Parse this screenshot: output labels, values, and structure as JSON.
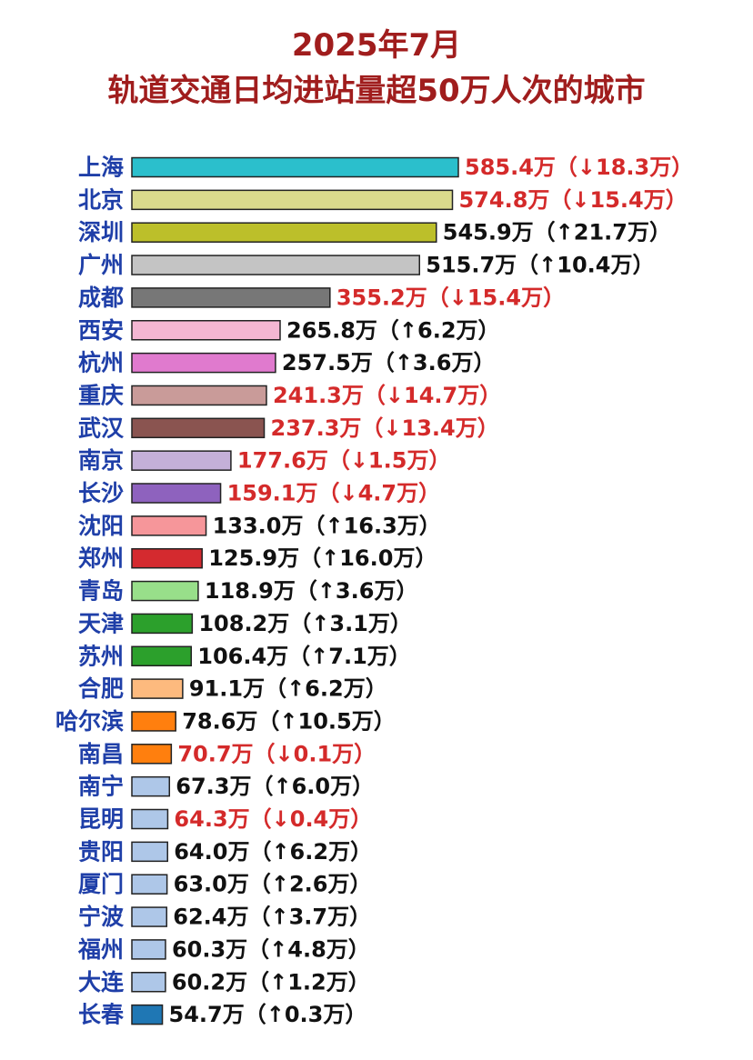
{
  "title": {
    "line1": "2025年7月",
    "line2": "轨道交通日均进站量超50万人次的城市"
  },
  "colors": {
    "title": "#a01d1d",
    "city_label": "#1f3fa8",
    "decrease_text": "#d42a2a",
    "increase_text": "#111111"
  },
  "chart_data": {
    "type": "bar",
    "orientation": "horizontal",
    "unit": "万",
    "title": "2025年7月 轨道交通日均进站量超50万人次的城市",
    "categories": [
      "上海",
      "北京",
      "深圳",
      "广州",
      "成都",
      "西安",
      "杭州",
      "重庆",
      "武汉",
      "南京",
      "长沙",
      "沈阳",
      "郑州",
      "青岛",
      "天津",
      "苏州",
      "合肥",
      "哈尔滨",
      "南昌",
      "南宁",
      "昆明",
      "贵阳",
      "厦门",
      "宁波",
      "福州",
      "大连",
      "长春"
    ],
    "values": [
      585.4,
      574.8,
      545.9,
      515.7,
      355.2,
      265.8,
      257.5,
      241.3,
      237.3,
      177.6,
      159.1,
      133.0,
      125.9,
      118.9,
      108.2,
      106.4,
      91.1,
      78.6,
      70.7,
      67.3,
      64.3,
      64.0,
      63.0,
      62.4,
      60.3,
      60.2,
      54.7
    ],
    "labels": [
      "585.4万（↓18.3万）",
      "574.8万（↓15.4万）",
      "545.9万（↑21.7万）",
      "515.7万（↑10.4万）",
      "355.2万（↓15.4万）",
      "265.8万（↑6.2万）",
      "257.5万（↑3.6万）",
      "241.3万（↓14.7万）",
      "237.3万（↓13.4万）",
      "177.6万（↓1.5万）",
      "159.1万（↓4.7万）",
      "133.0万（↑16.3万）",
      "125.9万（↑16.0万）",
      "118.9万（↑3.6万）",
      "108.2万（↑3.1万）",
      "106.4万（↑7.1万）",
      "91.1万（↑6.2万）",
      "78.6万（↑10.5万）",
      "70.7万（↓0.1万）",
      "67.3万（↑6.0万）",
      "64.3万（↓0.4万）",
      "64.0万（↑6.2万）",
      "63.0万（↑2.6万）",
      "62.4万（↑3.7万）",
      "60.3万（↑4.8万）",
      "60.2万（↑1.2万）",
      "54.7万（↑0.3万）"
    ],
    "changes": [
      -18.3,
      -15.4,
      21.7,
      10.4,
      -15.4,
      6.2,
      3.6,
      -14.7,
      -13.4,
      -1.5,
      -4.7,
      16.3,
      16.0,
      3.6,
      3.1,
      7.1,
      6.2,
      10.5,
      -0.1,
      6.0,
      -0.4,
      6.2,
      2.6,
      3.7,
      4.8,
      1.2,
      0.3
    ],
    "bar_colors": [
      "#2bbfcc",
      "#dada8c",
      "#bcbf2a",
      "#c4c4c4",
      "#777777",
      "#f4b6d2",
      "#e07ace",
      "#c99b99",
      "#8a5450",
      "#c4b0d8",
      "#8e62be",
      "#f6969a",
      "#d42a2f",
      "#98df8a",
      "#2ca02c",
      "#2ca02c",
      "#fdba7e",
      "#ff7f0e",
      "#ff7f0e",
      "#aec7e8",
      "#aec7e8",
      "#aec7e8",
      "#aec7e8",
      "#aec7e8",
      "#aec7e8",
      "#aec7e8",
      "#1f77b4"
    ],
    "grid": false,
    "legend": "none"
  }
}
